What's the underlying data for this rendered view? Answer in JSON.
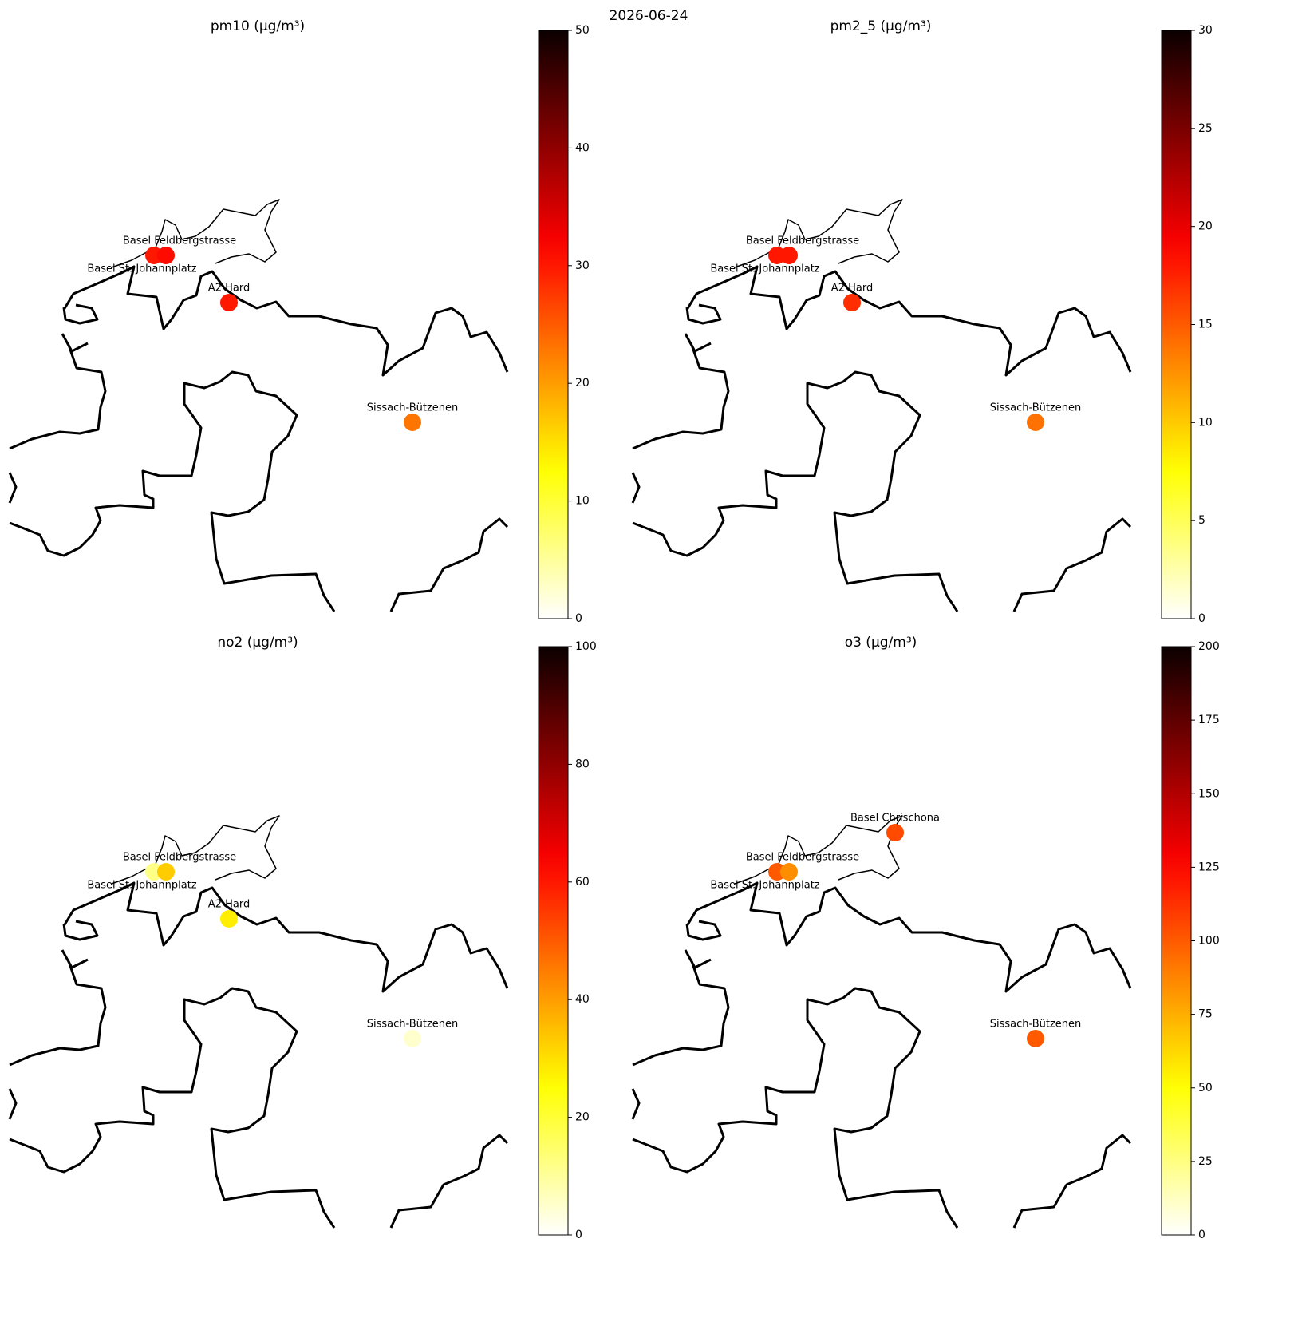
{
  "title": "2026-06-24",
  "chart_data": [
    {
      "type": "map",
      "title": "pm10 (µg/m³)",
      "colormap": "hot_r",
      "categories": [
        "Basel St. Johannplatz",
        "Basel Feldbergstrasse",
        "A2 Hard",
        "Sissach-Bützenen"
      ],
      "values": [
        30,
        31,
        30,
        23
      ],
      "colorlim": [
        0,
        50
      ],
      "colorticks": [
        0,
        10,
        20,
        30,
        40,
        50
      ]
    },
    {
      "type": "map",
      "title": "pm2_5 (µg/m³)",
      "colormap": "hot_r",
      "categories": [
        "Basel St. Johannplatz",
        "Basel Feldbergstrasse",
        "A2 Hard",
        "Sissach-Bützenen"
      ],
      "values": [
        18,
        18,
        17,
        14
      ],
      "colorlim": [
        0,
        30
      ],
      "colorticks": [
        0,
        5,
        10,
        15,
        20,
        25,
        30
      ]
    },
    {
      "type": "map",
      "title": "no2 (µg/m³)",
      "colormap": "hot_r",
      "categories": [
        "Basel St. Johannplatz",
        "Basel Feldbergstrasse",
        "A2 Hard",
        "Sissach-Bützenen"
      ],
      "values": [
        12,
        33,
        28,
        5
      ],
      "colorlim": [
        0,
        100
      ],
      "colorticks": [
        0,
        20,
        40,
        60,
        80,
        100
      ]
    },
    {
      "type": "map",
      "title": "o3 (µg/m³)",
      "colormap": "hot_r",
      "categories": [
        "Basel St. Johannplatz",
        "Basel Feldbergstrasse",
        "Basel Chrischona",
        "Sissach-Bützenen"
      ],
      "values": [
        100,
        85,
        105,
        100
      ],
      "colorlim": [
        0,
        200
      ],
      "colorticks": [
        0,
        25,
        50,
        75,
        100,
        125,
        150,
        175,
        200
      ]
    }
  ]
}
